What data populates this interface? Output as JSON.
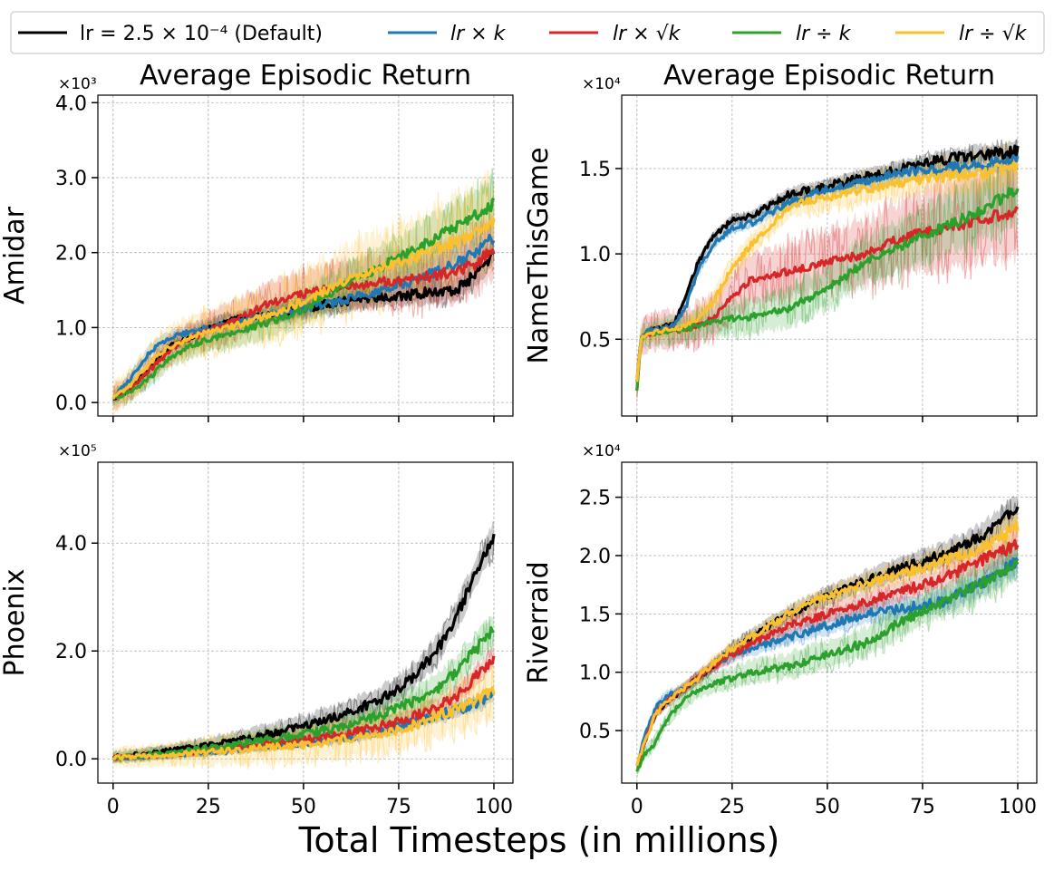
{
  "legend": [
    {
      "label": "lr = 2.5 × 10⁻⁴ (Default)",
      "color": "#000000",
      "key": "default"
    },
    {
      "label": "lr × k",
      "color": "#1f77b4",
      "key": "mul_k"
    },
    {
      "label": "lr × √k",
      "color": "#d62728",
      "key": "mul_sqrtk"
    },
    {
      "label": "lr ÷ k",
      "color": "#2ca02c",
      "key": "div_k"
    },
    {
      "label": "lr ÷ √k",
      "color": "#fbc02d",
      "key": "div_sqrtk"
    }
  ],
  "figure": {
    "xlabel": "Total Timesteps (in millions)"
  },
  "chart_data": [
    {
      "type": "line",
      "id": "amidar",
      "title": "Average Episodic Return",
      "ylabel": "Amidar",
      "multiplier": "×10³",
      "xlim": [
        -4,
        105
      ],
      "ylim": [
        -0.18,
        4.1
      ],
      "xticks": [
        0,
        25,
        50,
        75,
        100
      ],
      "xtick_labels": [
        "",
        "",
        "",
        "",
        ""
      ],
      "yticks": [
        0,
        1,
        2,
        3,
        4
      ],
      "ytick_labels": [
        "0.0",
        "1.0",
        "2.0",
        "3.0",
        "4.0"
      ],
      "series": [
        {
          "key": "default",
          "name": "lr = 2.5 × 10⁻⁴ (Default)",
          "x": [
            0,
            5,
            10,
            15,
            20,
            25,
            30,
            40,
            50,
            60,
            70,
            80,
            90,
            95,
            100
          ],
          "y": [
            0.05,
            0.2,
            0.5,
            0.75,
            0.85,
            1.0,
            1.1,
            1.15,
            1.25,
            1.35,
            1.4,
            1.45,
            1.5,
            1.7,
            2.0
          ],
          "band": 0.18
        },
        {
          "key": "mul_k",
          "name": "lr × k",
          "x": [
            0,
            5,
            10,
            15,
            20,
            25,
            30,
            40,
            50,
            60,
            70,
            80,
            90,
            95,
            100
          ],
          "y": [
            0.05,
            0.35,
            0.7,
            0.85,
            0.95,
            1.0,
            1.05,
            1.15,
            1.25,
            1.35,
            1.5,
            1.65,
            1.85,
            2.0,
            2.2
          ],
          "band": 0.22
        },
        {
          "key": "mul_sqrtk",
          "name": "lr × √k",
          "x": [
            0,
            5,
            10,
            15,
            20,
            25,
            30,
            40,
            50,
            60,
            70,
            80,
            90,
            95,
            100
          ],
          "y": [
            0.05,
            0.2,
            0.45,
            0.7,
            0.85,
            0.95,
            1.05,
            1.3,
            1.45,
            1.55,
            1.6,
            1.65,
            1.75,
            1.85,
            2.05
          ],
          "band": 0.45
        },
        {
          "key": "div_k",
          "name": "lr ÷ k",
          "x": [
            0,
            5,
            10,
            15,
            20,
            25,
            30,
            40,
            50,
            60,
            70,
            80,
            90,
            95,
            100
          ],
          "y": [
            0.05,
            0.15,
            0.35,
            0.6,
            0.75,
            0.85,
            0.9,
            1.05,
            1.25,
            1.55,
            1.8,
            2.05,
            2.35,
            2.5,
            2.65
          ],
          "band": 0.35
        },
        {
          "key": "div_sqrtk",
          "name": "lr ÷ √k",
          "x": [
            0,
            5,
            10,
            15,
            20,
            25,
            30,
            40,
            50,
            60,
            70,
            80,
            90,
            95,
            100
          ],
          "y": [
            0.05,
            0.25,
            0.55,
            0.75,
            0.85,
            0.95,
            1.0,
            1.15,
            1.35,
            1.6,
            1.8,
            1.95,
            2.15,
            2.25,
            2.4
          ],
          "band": 0.6
        }
      ]
    },
    {
      "type": "line",
      "id": "namethisgame",
      "title": "Average Episodic Return",
      "ylabel": "NameThisGame",
      "multiplier": "×10⁴",
      "xlim": [
        -4,
        105
      ],
      "ylim": [
        0.05,
        1.93
      ],
      "xticks": [
        0,
        25,
        50,
        75,
        100
      ],
      "xtick_labels": [
        "",
        "",
        "",
        "",
        ""
      ],
      "yticks": [
        0.5,
        1.0,
        1.5
      ],
      "ytick_labels": [
        "0.5",
        "1.0",
        "1.5"
      ],
      "series": [
        {
          "key": "default",
          "name": "lr = 2.5 × 10⁻⁴ (Default)",
          "x": [
            0,
            1,
            3,
            6,
            10,
            13,
            16,
            20,
            25,
            30,
            40,
            50,
            60,
            70,
            80,
            90,
            100
          ],
          "y": [
            0.25,
            0.5,
            0.55,
            0.56,
            0.6,
            0.75,
            0.95,
            1.1,
            1.2,
            1.22,
            1.35,
            1.4,
            1.45,
            1.5,
            1.55,
            1.58,
            1.6
          ],
          "band": 0.06
        },
        {
          "key": "mul_k",
          "name": "lr × k",
          "x": [
            0,
            1,
            3,
            6,
            10,
            13,
            16,
            20,
            25,
            30,
            40,
            50,
            60,
            70,
            80,
            90,
            100
          ],
          "y": [
            0.25,
            0.5,
            0.55,
            0.56,
            0.58,
            0.7,
            0.9,
            1.05,
            1.15,
            1.18,
            1.3,
            1.38,
            1.42,
            1.48,
            1.5,
            1.52,
            1.55
          ],
          "band": 0.06
        },
        {
          "key": "mul_sqrtk",
          "name": "lr × √k",
          "x": [
            0,
            1,
            3,
            6,
            10,
            13,
            16,
            20,
            25,
            30,
            40,
            50,
            60,
            70,
            80,
            90,
            100
          ],
          "y": [
            0.2,
            0.5,
            0.53,
            0.55,
            0.55,
            0.56,
            0.58,
            0.62,
            0.75,
            0.85,
            0.9,
            0.95,
            1.0,
            1.1,
            1.15,
            1.2,
            1.25
          ],
          "band": 0.28
        },
        {
          "key": "div_k",
          "name": "lr ÷ k",
          "x": [
            0,
            1,
            3,
            6,
            10,
            13,
            16,
            20,
            25,
            30,
            40,
            50,
            60,
            70,
            80,
            90,
            100
          ],
          "y": [
            0.2,
            0.5,
            0.53,
            0.54,
            0.55,
            0.56,
            0.58,
            0.6,
            0.62,
            0.63,
            0.68,
            0.8,
            0.95,
            1.05,
            1.15,
            1.25,
            1.38
          ],
          "band": 0.2
        },
        {
          "key": "div_sqrtk",
          "name": "lr ÷ √k",
          "x": [
            0,
            1,
            3,
            6,
            10,
            13,
            16,
            20,
            25,
            30,
            40,
            50,
            60,
            70,
            80,
            90,
            100
          ],
          "y": [
            0.25,
            0.5,
            0.53,
            0.55,
            0.56,
            0.58,
            0.62,
            0.72,
            0.92,
            1.05,
            1.28,
            1.33,
            1.38,
            1.42,
            1.45,
            1.47,
            1.52
          ],
          "band": 0.12
        }
      ]
    },
    {
      "type": "line",
      "id": "phoenix",
      "title": "",
      "ylabel": "Phoenix",
      "multiplier": "×10⁵",
      "xlim": [
        -4,
        105
      ],
      "ylim": [
        -0.45,
        5.5
      ],
      "xticks": [
        0,
        25,
        50,
        75,
        100
      ],
      "xtick_labels": [
        "0",
        "25",
        "50",
        "75",
        "100"
      ],
      "yticks": [
        0,
        2,
        4
      ],
      "ytick_labels": [
        "0.0",
        "2.0",
        "4.0"
      ],
      "series": [
        {
          "key": "default",
          "name": "lr = 2.5 × 10⁻⁴ (Default)",
          "x": [
            0,
            10,
            20,
            30,
            40,
            50,
            60,
            70,
            75,
            80,
            85,
            90,
            95,
            100
          ],
          "y": [
            0.03,
            0.1,
            0.2,
            0.3,
            0.45,
            0.6,
            0.8,
            1.1,
            1.3,
            1.6,
            2.0,
            2.6,
            3.4,
            4.1
          ],
          "band": 0.3
        },
        {
          "key": "mul_k",
          "name": "lr × k",
          "x": [
            0,
            10,
            20,
            30,
            40,
            50,
            60,
            70,
            75,
            80,
            85,
            90,
            95,
            100
          ],
          "y": [
            0.02,
            0.05,
            0.1,
            0.15,
            0.25,
            0.3,
            0.4,
            0.5,
            0.6,
            0.7,
            0.8,
            0.9,
            1.0,
            1.2
          ],
          "band": 0.15
        },
        {
          "key": "mul_sqrtk",
          "name": "lr × √k",
          "x": [
            0,
            10,
            20,
            30,
            40,
            50,
            60,
            70,
            75,
            80,
            85,
            90,
            95,
            100
          ],
          "y": [
            0.02,
            0.06,
            0.12,
            0.2,
            0.28,
            0.35,
            0.45,
            0.6,
            0.7,
            0.8,
            0.95,
            1.15,
            1.5,
            1.9
          ],
          "band": 0.2
        },
        {
          "key": "div_k",
          "name": "lr ÷ k",
          "x": [
            0,
            10,
            20,
            30,
            40,
            50,
            60,
            70,
            75,
            80,
            85,
            90,
            95,
            100
          ],
          "y": [
            0.02,
            0.08,
            0.15,
            0.25,
            0.35,
            0.45,
            0.6,
            0.8,
            0.95,
            1.1,
            1.3,
            1.6,
            2.0,
            2.4
          ],
          "band": 0.3
        },
        {
          "key": "div_sqrtk",
          "name": "lr ÷ √k",
          "x": [
            0,
            10,
            20,
            30,
            40,
            50,
            60,
            70,
            75,
            80,
            85,
            90,
            95,
            100
          ],
          "y": [
            0.02,
            0.05,
            0.1,
            0.15,
            0.2,
            0.25,
            0.35,
            0.45,
            0.55,
            0.65,
            0.8,
            0.9,
            1.1,
            1.25
          ],
          "band": 0.5
        }
      ]
    },
    {
      "type": "line",
      "id": "riverraid",
      "title": "",
      "ylabel": "Riverraid",
      "multiplier": "×10⁴",
      "xlim": [
        -4,
        105
      ],
      "ylim": [
        0.05,
        2.8
      ],
      "xticks": [
        0,
        25,
        50,
        75,
        100
      ],
      "xtick_labels": [
        "0",
        "25",
        "50",
        "75",
        "100"
      ],
      "yticks": [
        0.5,
        1.0,
        1.5,
        2.0,
        2.5
      ],
      "ytick_labels": [
        "0.5",
        "1.0",
        "1.5",
        "2.0",
        "2.5"
      ],
      "series": [
        {
          "key": "default",
          "name": "lr = 2.5 × 10⁻⁴ (Default)",
          "x": [
            0,
            2,
            5,
            8,
            12,
            16,
            20,
            25,
            30,
            40,
            50,
            60,
            70,
            80,
            90,
            100
          ],
          "y": [
            0.2,
            0.4,
            0.65,
            0.75,
            0.85,
            0.95,
            1.05,
            1.2,
            1.3,
            1.5,
            1.65,
            1.78,
            1.9,
            2.0,
            2.15,
            2.4
          ],
          "band": 0.12
        },
        {
          "key": "mul_k",
          "name": "lr × k",
          "x": [
            0,
            2,
            5,
            8,
            12,
            16,
            20,
            25,
            30,
            40,
            50,
            60,
            70,
            80,
            90,
            100
          ],
          "y": [
            0.2,
            0.45,
            0.7,
            0.8,
            0.85,
            0.95,
            1.05,
            1.15,
            1.2,
            1.3,
            1.4,
            1.5,
            1.55,
            1.6,
            1.75,
            1.95
          ],
          "band": 0.12
        },
        {
          "key": "mul_sqrtk",
          "name": "lr × √k",
          "x": [
            0,
            2,
            5,
            8,
            12,
            16,
            20,
            25,
            30,
            40,
            50,
            60,
            70,
            80,
            90,
            100
          ],
          "y": [
            0.2,
            0.4,
            0.65,
            0.75,
            0.85,
            0.95,
            1.05,
            1.15,
            1.25,
            1.4,
            1.5,
            1.6,
            1.7,
            1.8,
            1.95,
            2.1
          ],
          "band": 0.12
        },
        {
          "key": "div_k",
          "name": "lr ÷ k",
          "x": [
            0,
            2,
            5,
            8,
            12,
            16,
            20,
            25,
            30,
            40,
            50,
            60,
            70,
            80,
            90,
            100
          ],
          "y": [
            0.15,
            0.3,
            0.4,
            0.6,
            0.75,
            0.85,
            0.9,
            0.95,
            1.0,
            1.05,
            1.15,
            1.25,
            1.45,
            1.6,
            1.75,
            1.95
          ],
          "band": 0.18
        },
        {
          "key": "div_sqrtk",
          "name": "lr ÷ √k",
          "x": [
            0,
            2,
            5,
            8,
            12,
            16,
            20,
            25,
            30,
            40,
            50,
            60,
            70,
            80,
            90,
            100
          ],
          "y": [
            0.2,
            0.4,
            0.65,
            0.75,
            0.85,
            0.95,
            1.08,
            1.2,
            1.3,
            1.5,
            1.65,
            1.75,
            1.85,
            1.95,
            2.05,
            2.25
          ],
          "band": 0.12
        }
      ]
    }
  ]
}
